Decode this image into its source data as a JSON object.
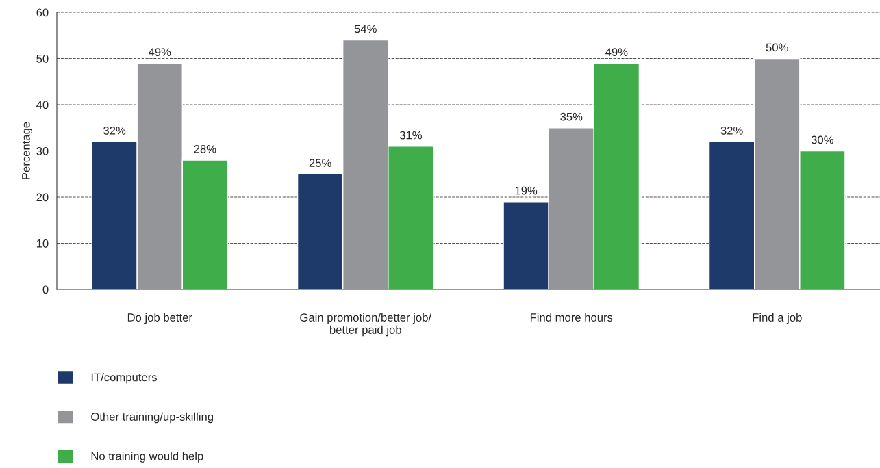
{
  "chart_data": {
    "type": "bar",
    "ylabel": "Percentage",
    "categories": [
      "Do job better",
      "Gain promotion/better job/\nbetter paid job",
      "Find more hours",
      "Find a job"
    ],
    "series": [
      {
        "name": "IT/computers",
        "color": "#1e3a6a",
        "values": [
          32,
          25,
          19,
          32
        ],
        "value_labels": [
          "32%",
          "25%",
          "19%",
          "32%"
        ]
      },
      {
        "name": "Other training/up-skilling",
        "color": "#939598",
        "values": [
          49,
          54,
          35,
          50
        ],
        "value_labels": [
          "49%",
          "54%",
          "35%",
          "50%"
        ]
      },
      {
        "name": "No training would help",
        "color": "#3fae4a",
        "values": [
          28,
          31,
          49,
          30
        ],
        "value_labels": [
          "28%",
          "31%",
          "49%",
          "30%"
        ]
      }
    ],
    "ylim": [
      0,
      60
    ],
    "yticks": [
      0,
      10,
      20,
      30,
      40,
      50,
      60
    ],
    "grid": "y",
    "legend": "bottom left"
  }
}
